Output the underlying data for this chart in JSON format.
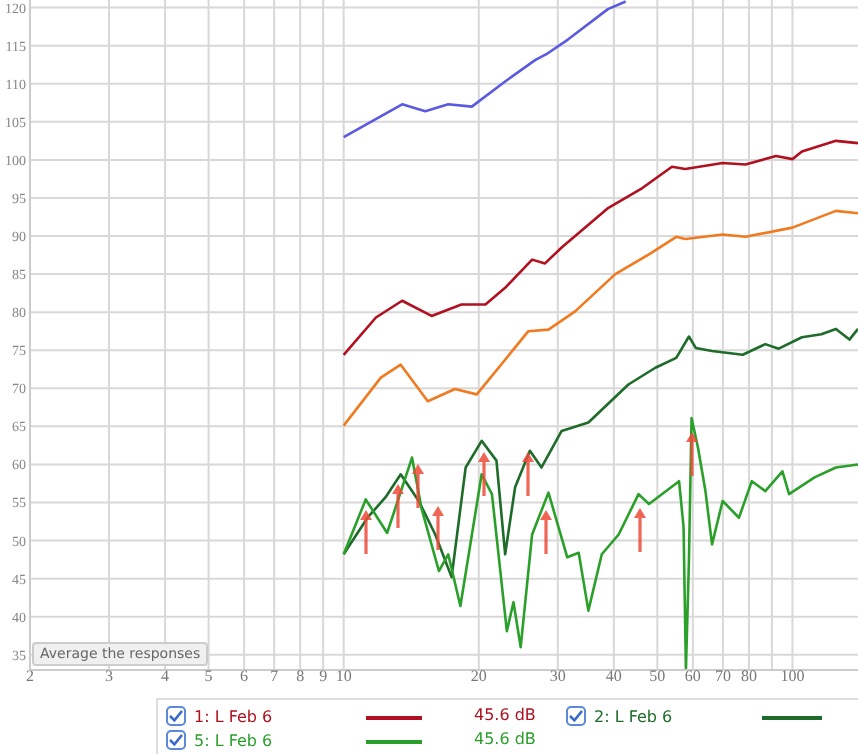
{
  "chart_data": {
    "type": "line",
    "log": "x",
    "grid": true,
    "legend": "bottom",
    "marker": "none",
    "line_style": "solid",
    "xlim": [
      2,
      140
    ],
    "ylim": [
      33,
      121
    ],
    "xticks": [
      2,
      3,
      4,
      5,
      6,
      7,
      8,
      9,
      10,
      20,
      30,
      40,
      50,
      60,
      70,
      80,
      {
        "value": 90,
        "label": null
      },
      100
    ],
    "yticks": [
      35,
      40,
      45,
      50,
      55,
      60,
      65,
      70,
      75,
      80,
      85,
      90,
      95,
      100,
      105,
      110,
      115,
      120
    ],
    "annotations": [
      "Average the responses",
      "45.6 dB",
      "45.6 dB"
    ],
    "series": [
      {
        "color": "#5a5ae0",
        "x": [
          10,
          13.5,
          15.2,
          17.1,
          19.3,
          22.9,
          26.7,
          28.5,
          31.6,
          38.8,
          42.5
        ],
        "values": [
          103,
          107.3,
          106.4,
          107.3,
          107,
          110.3,
          113.1,
          114,
          115.8,
          119.8,
          120.8
        ]
      },
      {
        "name": "1: L Feb 6",
        "color": "#b01020",
        "x": [
          10,
          11.8,
          13.5,
          15.7,
          18.3,
          20.7,
          22.9,
          26.3,
          28.1,
          30.6,
          38.9,
          46.3,
          53.9,
          57.7,
          69.9,
          78.6,
          91.9,
          100,
          105,
          125,
          140
        ],
        "values": [
          74.4,
          79.3,
          81.5,
          79.5,
          81,
          81,
          83.2,
          86.9,
          86.4,
          88.5,
          93.7,
          96.3,
          99.1,
          98.8,
          99.6,
          99.4,
          100.5,
          100.1,
          101.1,
          102.5,
          102.2
        ]
      },
      {
        "color": "#f07a20",
        "x": [
          10,
          12.1,
          13.4,
          15.4,
          17.7,
          19.8,
          25.8,
          28.6,
          32.8,
          40.3,
          47.9,
          55.1,
          57.7,
          69.9,
          78.6,
          100,
          125,
          140
        ],
        "values": [
          65.1,
          71.4,
          73.1,
          68.3,
          69.9,
          69.2,
          77.5,
          77.7,
          80.1,
          85,
          87.6,
          89.9,
          89.6,
          90.2,
          89.9,
          91.1,
          93.3,
          93
        ]
      },
      {
        "name": "2: L Feb 6",
        "color": "#1e6b2a",
        "x": [
          10,
          11.3,
          12.4,
          13.4,
          14.7,
          16,
          17.4,
          18.7,
          20.3,
          21.9,
          22.9,
          24.1,
          26,
          27.6,
          30.6,
          35.1,
          43.1,
          49.5,
          55.1,
          58.8,
          60.9,
          66.2,
          77.5,
          87,
          93.2,
          105,
          116,
          125,
          134,
          140
        ],
        "values": [
          48.2,
          53,
          55.7,
          58.7,
          55.2,
          50.8,
          45.2,
          59.6,
          63.1,
          60.5,
          48.2,
          57,
          61.8,
          59.6,
          64.4,
          65.5,
          70.5,
          72.7,
          74,
          76.8,
          75.3,
          74.9,
          74.4,
          75.8,
          75.2,
          76.7,
          77.1,
          77.8,
          76.4,
          77.8
        ]
      },
      {
        "name": "5: L Feb 6",
        "color": "#2aa02a",
        "x": [
          10,
          11.2,
          12.5,
          14.2,
          14.9,
          16.3,
          17.1,
          18.2,
          20.3,
          21.4,
          23.1,
          23.9,
          24.8,
          26.3,
          28.6,
          31.5,
          33.4,
          35.1,
          37.6,
          41,
          45.4,
          47.9,
          55.9,
          57.2,
          57.9,
          58.8,
          59.6,
          61.6,
          64,
          66.2,
          69.9,
          76,
          81.2,
          87,
          95,
          98.3,
          112,
          125,
          140
        ],
        "values": [
          48.2,
          55.4,
          51,
          60.9,
          54.3,
          46,
          48.2,
          41.4,
          58.7,
          56.1,
          38.1,
          41.9,
          36,
          50.8,
          56.3,
          47.8,
          48.4,
          40.8,
          48.2,
          50.8,
          56.1,
          54.8,
          57.8,
          51.8,
          33,
          47.3,
          66.1,
          62.2,
          56.5,
          49.5,
          55.2,
          53,
          57.8,
          56.5,
          59.1,
          56.1,
          58.3,
          59.6,
          60
        ]
      }
    ]
  }
}
